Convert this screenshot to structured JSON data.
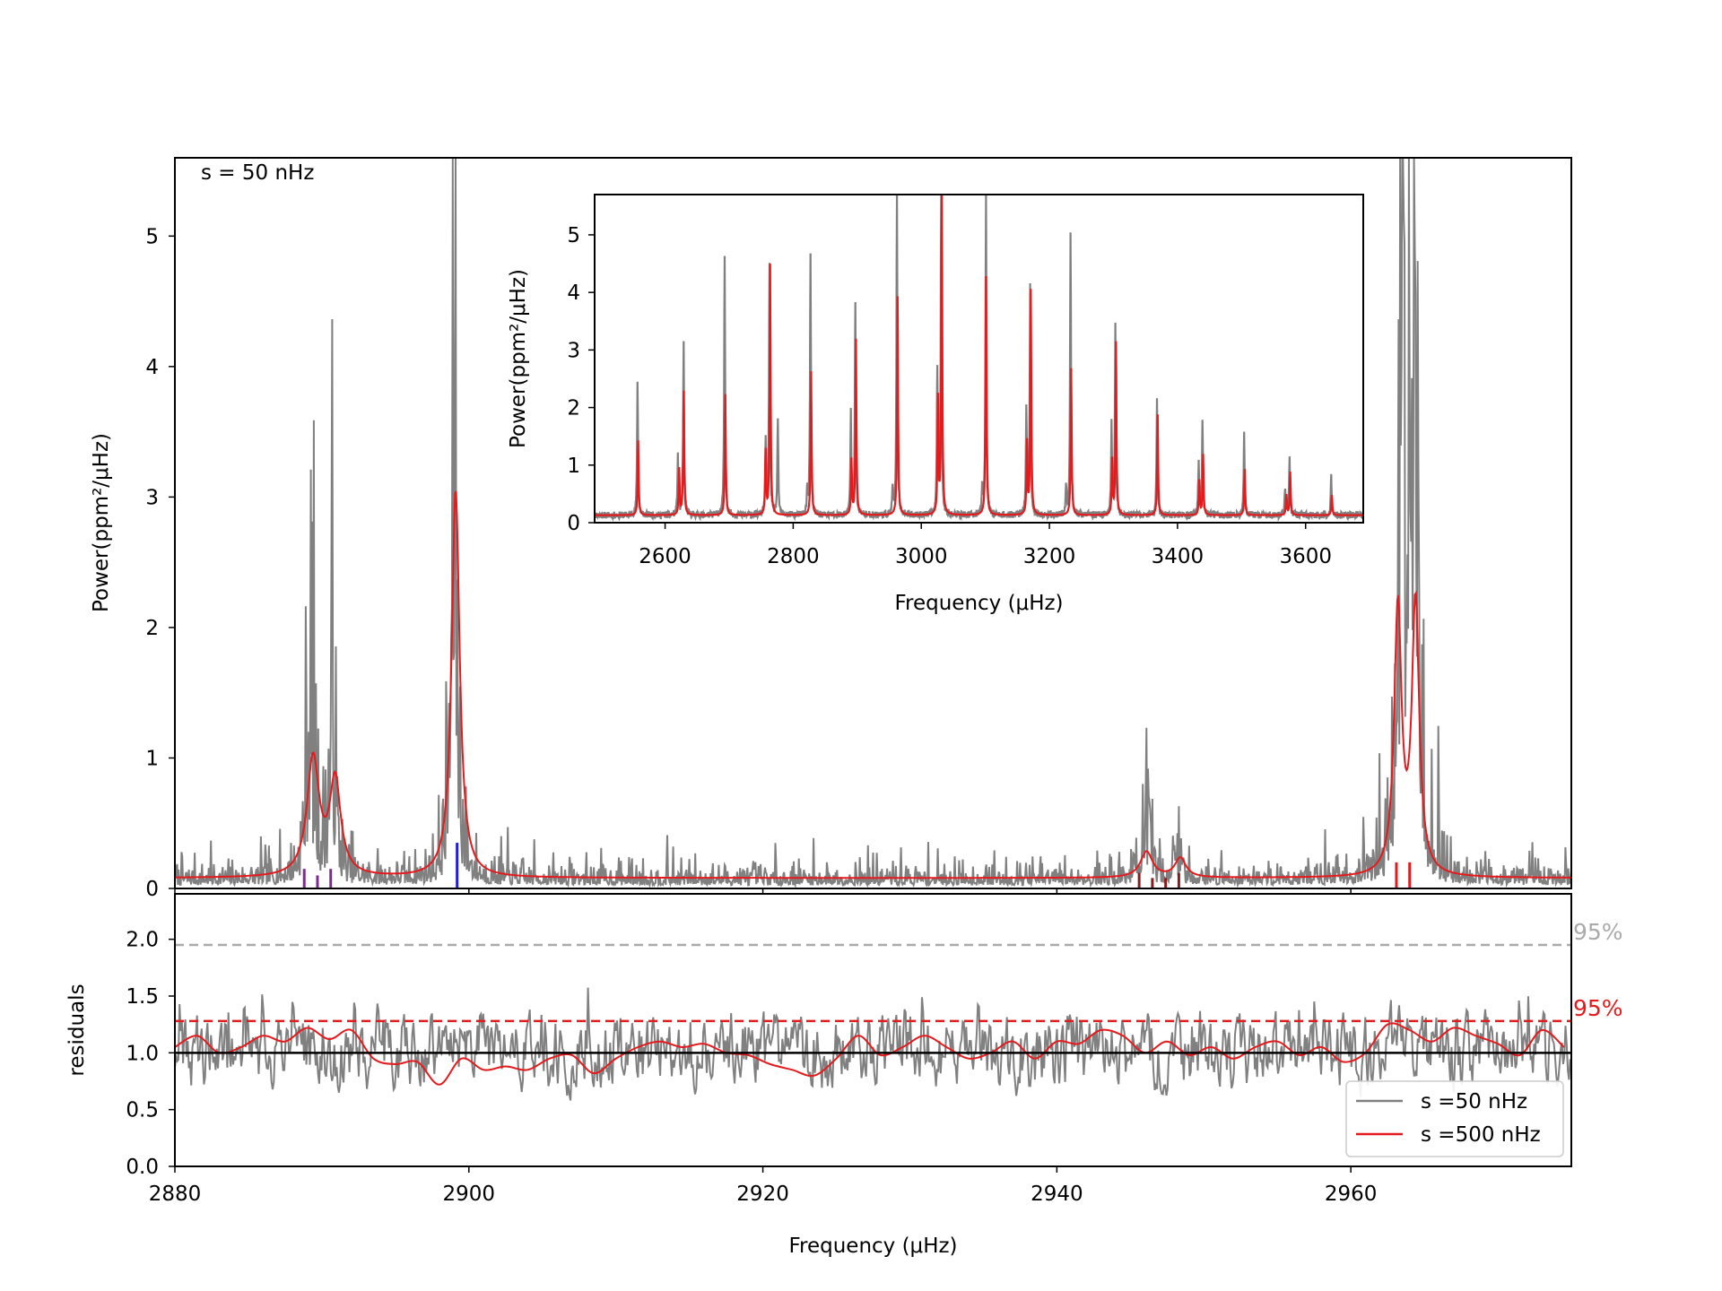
{
  "chart_data": [
    {
      "id": "main",
      "type": "line",
      "annotation": "s = 50 nHz",
      "ylabel": "Power(ppm²/μHz)",
      "xlabel": "",
      "xlim": [
        2880,
        2975
      ],
      "ylim": [
        0,
        5.6
      ],
      "xticks": [
        2880,
        2900,
        2920,
        2940,
        2960
      ],
      "yticks": [
        0,
        1,
        2,
        3,
        4,
        5
      ],
      "series": [
        {
          "name": "s =50 nHz",
          "color": "#808080",
          "peaks": [
            [
              2889.2,
              1.45,
              0.6
            ],
            [
              2890.7,
              1.3,
              0.5
            ],
            [
              2899.0,
              3.6,
              0.45
            ],
            [
              2946.0,
              0.35,
              0.8
            ],
            [
              2948.2,
              0.22,
              0.6
            ],
            [
              2963.5,
              5.6,
              0.45
            ],
            [
              2964.4,
              5.2,
              0.45
            ]
          ],
          "baseline": 0.08
        },
        {
          "name": "s =500 nHz",
          "color": "#e41a1c",
          "peaks": [
            [
              2889.4,
              0.9,
              1.0
            ],
            [
              2890.9,
              0.72,
              0.9
            ],
            [
              2899.1,
              2.98,
              0.65
            ],
            [
              2946.1,
              0.2,
              1.0
            ],
            [
              2948.4,
              0.15,
              0.9
            ],
            [
              2963.2,
              2.05,
              0.6
            ],
            [
              2964.4,
              2.08,
              0.6
            ]
          ],
          "baseline": 0.08
        }
      ],
      "mode_markers": [
        {
          "x": 2888.8,
          "height": 0.15,
          "color": "#7b2d8e"
        },
        {
          "x": 2889.7,
          "height": 0.1,
          "color": "#7b2d8e"
        },
        {
          "x": 2890.6,
          "height": 0.15,
          "color": "#7b2d8e"
        },
        {
          "x": 2899.2,
          "height": 0.35,
          "color": "#1f1fd6"
        },
        {
          "x": 2945.6,
          "height": 0.12,
          "color": "#8b1c1c"
        },
        {
          "x": 2946.5,
          "height": 0.08,
          "color": "#8b1c1c"
        },
        {
          "x": 2947.4,
          "height": 0.08,
          "color": "#8b1c1c"
        },
        {
          "x": 2948.3,
          "height": 0.12,
          "color": "#8b1c1c"
        },
        {
          "x": 2963.1,
          "height": 0.2,
          "color": "#e41a1c"
        },
        {
          "x": 2964.0,
          "height": 0.2,
          "color": "#e41a1c"
        }
      ]
    },
    {
      "id": "inset",
      "type": "line",
      "xlabel": "Frequency (μHz)",
      "ylabel": "Power(ppm²/μHz)",
      "xlim": [
        2490,
        3690
      ],
      "ylim": [
        0,
        5.7
      ],
      "xticks": [
        2600,
        2800,
        3000,
        3200,
        3400,
        3600
      ],
      "yticks": [
        0,
        1,
        2,
        3,
        4,
        5
      ],
      "series": [
        {
          "name": "s =50 nHz",
          "color": "#808080",
          "peaks": [
            [
              2557,
              2.3
            ],
            [
              2620,
              1.0
            ],
            [
              2629,
              3.0
            ],
            [
              2693,
              4.45
            ],
            [
              2757,
              1.3
            ],
            [
              2763,
              4.35
            ],
            [
              2776,
              1.6
            ],
            [
              2822,
              0.4
            ],
            [
              2827,
              4.55
            ],
            [
              2890,
              1.75
            ],
            [
              2897,
              3.65
            ],
            [
              2955,
              0.4
            ],
            [
              2962,
              5.6
            ],
            [
              3025,
              2.5
            ],
            [
              3031,
              5.6
            ],
            [
              3095,
              0.45
            ],
            [
              3101,
              5.6
            ],
            [
              3164,
              1.85
            ],
            [
              3170,
              3.95
            ],
            [
              3226,
              0.45
            ],
            [
              3233,
              4.9
            ],
            [
              3297,
              1.55
            ],
            [
              3303,
              3.3
            ],
            [
              3368,
              2.05
            ],
            [
              3433,
              0.9
            ],
            [
              3439,
              1.65
            ],
            [
              3504,
              1.4
            ],
            [
              3568,
              0.5
            ],
            [
              3575,
              1.0
            ],
            [
              3640,
              0.7
            ]
          ]
        },
        {
          "name": "s =500 nHz",
          "color": "#e41a1c",
          "peaks": [
            [
              2558,
              1.3
            ],
            [
              2622,
              0.8
            ],
            [
              2629,
              2.15
            ],
            [
              2694,
              2.1
            ],
            [
              2757,
              1.1
            ],
            [
              2764,
              4.35
            ],
            [
              2828,
              2.5
            ],
            [
              2891,
              0.95
            ],
            [
              2898,
              3.05
            ],
            [
              2963,
              3.8
            ],
            [
              3026,
              2.0
            ],
            [
              3032,
              5.7
            ],
            [
              3101,
              4.15
            ],
            [
              3165,
              1.25
            ],
            [
              3171,
              3.9
            ],
            [
              3234,
              2.55
            ],
            [
              3298,
              0.95
            ],
            [
              3304,
              3.0
            ],
            [
              3369,
              1.75
            ],
            [
              3434,
              0.6
            ],
            [
              3440,
              1.05
            ],
            [
              3505,
              0.8
            ],
            [
              3570,
              0.35
            ],
            [
              3576,
              0.75
            ],
            [
              3641,
              0.35
            ]
          ]
        }
      ]
    },
    {
      "id": "residuals",
      "type": "line",
      "ylabel": "residuals",
      "xlabel": "Frequency (μHz)",
      "xlim": [
        2880,
        2975
      ],
      "ylim": [
        0,
        2.4
      ],
      "xticks": [
        2880,
        2900,
        2920,
        2940,
        2960
      ],
      "yticks": [
        0.0,
        0.5,
        1.0,
        1.5,
        2.0
      ],
      "ytick_labels": [
        "0.0",
        "0.5",
        "1.0",
        "1.5",
        "2.0"
      ],
      "reference_line": 1.0,
      "thresholds": [
        {
          "value": 1.95,
          "label": "95%",
          "color": "#aaaaaa"
        },
        {
          "value": 1.28,
          "label": "95%",
          "color": "#e41a1c"
        }
      ],
      "legend": {
        "position": "lower-right",
        "entries": [
          {
            "label": "s =50 nHz",
            "color": "#808080"
          },
          {
            "label": "s =500 nHz",
            "color": "#e41a1c"
          }
        ]
      },
      "series": [
        {
          "name": "s =50 nHz",
          "color": "#808080",
          "mean": 1.0,
          "spread": 0.6
        },
        {
          "name": "s =500 nHz",
          "color": "#e41a1c",
          "x": [
            2880,
            2881.5,
            2883,
            2884.5,
            2886,
            2887.5,
            2889,
            2890.5,
            2892,
            2893.5,
            2895,
            2896.5,
            2898,
            2899.5,
            2901,
            2902.5,
            2904,
            2905.5,
            2907,
            2908.5,
            2910,
            2911.5,
            2913,
            2914.5,
            2916,
            2917.5,
            2919,
            2920.5,
            2922,
            2923.5,
            2925,
            2926.5,
            2928,
            2929.5,
            2931,
            2932.5,
            2934,
            2935.5,
            2937,
            2938.5,
            2940,
            2941.5,
            2943,
            2944.5,
            2946,
            2947.5,
            2949,
            2950.5,
            2952,
            2953.5,
            2955,
            2956.5,
            2958,
            2959.5,
            2961,
            2962.5,
            2964,
            2965.5,
            2967,
            2968.5,
            2970,
            2971.5,
            2973,
            2974.5
          ],
          "y": [
            1.05,
            1.15,
            1.0,
            1.05,
            1.15,
            1.1,
            1.22,
            1.12,
            1.2,
            0.95,
            0.9,
            0.92,
            0.72,
            0.95,
            0.85,
            0.88,
            0.85,
            0.95,
            0.98,
            0.82,
            0.95,
            1.05,
            1.1,
            1.05,
            1.08,
            1.0,
            0.98,
            0.9,
            0.85,
            0.8,
            0.95,
            1.15,
            0.98,
            1.05,
            1.15,
            1.05,
            0.95,
            1.0,
            1.1,
            0.95,
            1.1,
            1.08,
            1.2,
            1.15,
            1.0,
            1.1,
            0.98,
            1.05,
            0.95,
            1.05,
            1.1,
            0.98,
            1.05,
            0.92,
            1.0,
            1.25,
            1.2,
            1.1,
            1.22,
            1.15,
            1.08,
            0.98,
            1.2,
            1.05
          ]
        }
      ]
    }
  ]
}
